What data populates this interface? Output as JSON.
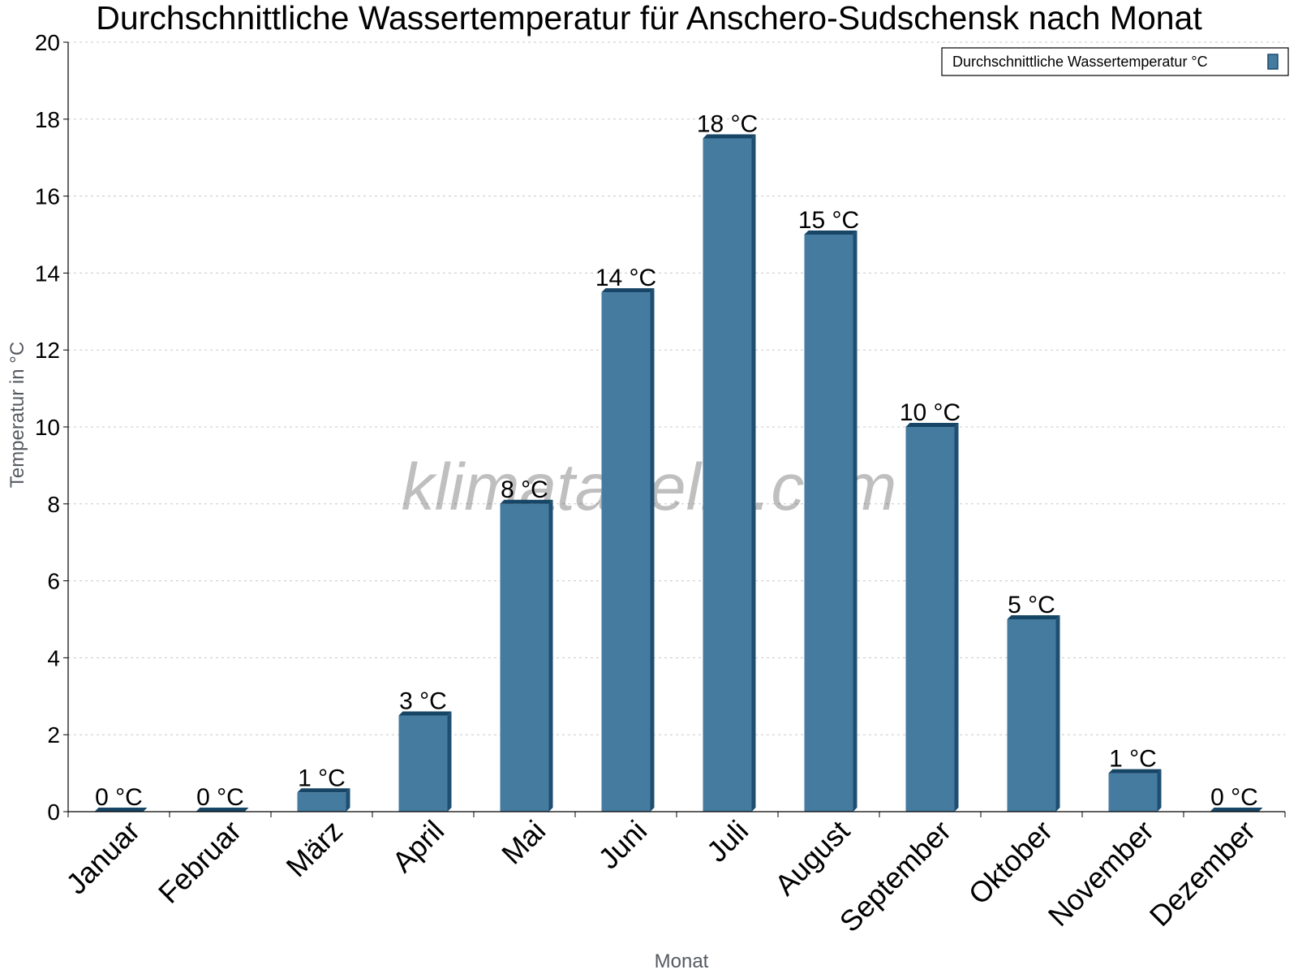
{
  "chart_data": {
    "type": "bar",
    "title": "Durchschnittliche Wassertemperatur für Anschero-Sudschensk nach Monat",
    "xlabel": "Monat",
    "ylabel": "Temperatur in °C",
    "ylim": [
      0,
      20
    ],
    "yticks": [
      0,
      2,
      4,
      6,
      8,
      10,
      12,
      14,
      16,
      18,
      20
    ],
    "grid": true,
    "legend_position": "top-right",
    "categories": [
      "Januar",
      "Februar",
      "März",
      "April",
      "Mai",
      "Juni",
      "Juli",
      "August",
      "September",
      "Oktober",
      "November",
      "Dezember"
    ],
    "series": [
      {
        "name": "Durchschnittliche Wassertemperatur °C",
        "color": "#467ba0",
        "values": [
          0,
          0,
          0.5,
          2.5,
          8,
          13.5,
          17.5,
          15,
          10,
          5,
          1,
          0
        ],
        "data_labels": [
          "0 °C",
          "0 °C",
          "1 °C",
          "3 °C",
          "8 °C",
          "14 °C",
          "18 °C",
          "15 °C",
          "10 °C",
          "5 °C",
          "1 °C",
          "0 °C"
        ]
      }
    ],
    "watermark": "klimatabelle.com"
  }
}
